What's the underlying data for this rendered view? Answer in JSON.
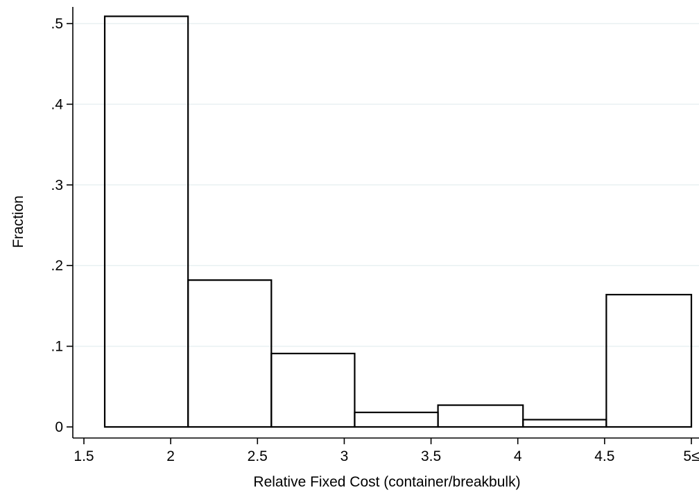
{
  "chart_data": {
    "type": "bar",
    "histogram": true,
    "bin_edges": [
      1.62,
      2.1,
      2.58,
      3.06,
      3.54,
      4.03,
      4.51,
      5
    ],
    "values": [
      0.509,
      0.182,
      0.091,
      0.018,
      0.027,
      0.009,
      0.164
    ],
    "xlabel": "Relative Fixed Cost (container/breakbulk)",
    "ylabel": "Fraction",
    "x_ticks": [
      {
        "value": 1.5,
        "label": "1.5"
      },
      {
        "value": 2,
        "label": "2"
      },
      {
        "value": 2.5,
        "label": "2.5"
      },
      {
        "value": 3,
        "label": "3"
      },
      {
        "value": 3.5,
        "label": "3.5"
      },
      {
        "value": 4,
        "label": "4"
      },
      {
        "value": 4.5,
        "label": "4.5"
      },
      {
        "value": 5,
        "label": "5≤"
      }
    ],
    "y_ticks": [
      {
        "value": 0,
        "label": "0"
      },
      {
        "value": 0.1,
        "label": ".1"
      },
      {
        "value": 0.2,
        "label": ".2"
      },
      {
        "value": 0.3,
        "label": ".3"
      },
      {
        "value": 0.4,
        "label": ".4"
      },
      {
        "value": 0.5,
        "label": ".5"
      }
    ],
    "xlim": [
      1.5,
      5
    ],
    "ylim": [
      0,
      0.5
    ],
    "grid": "horizontal",
    "colors": {
      "bar_outline": "#000000",
      "bar_fill": "none",
      "grid": "#e8f0f2",
      "background": "#ffffff"
    }
  }
}
